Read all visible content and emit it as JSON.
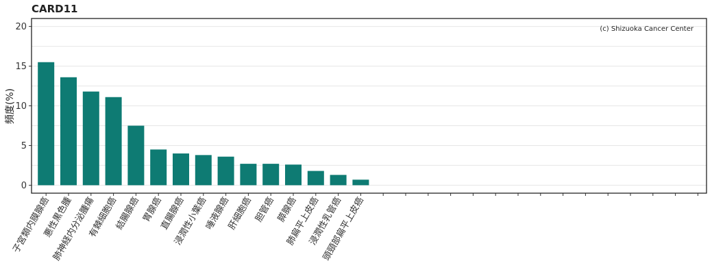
{
  "chart_data": {
    "type": "bar",
    "title": "CARD11",
    "ylabel": "頻度(%)",
    "xlabel": "",
    "annotation": "(c) Shizuoka Cancer Center",
    "ylim": [
      -1,
      21
    ],
    "yticks": [
      0,
      5,
      10,
      15,
      20
    ],
    "grid": true,
    "bar_color": "#0e7b73",
    "categories": [
      "子宮類内膜腺癌",
      "悪性黒色腫",
      "肺神経内分泌腫瘍",
      "有棘細胞癌",
      "結腸腺癌",
      "胃腺癌",
      "直腸腺癌",
      "浸潤性小葉癌",
      "唾液腺癌",
      "肝細胞癌",
      "胆管癌",
      "膵腺癌",
      "肺扁平上皮癌",
      "浸潤性乳管癌",
      "頭頸部扁平上皮癌"
    ],
    "values": [
      15.5,
      13.6,
      11.8,
      11.1,
      7.5,
      4.5,
      4.0,
      3.8,
      3.6,
      2.7,
      2.7,
      2.6,
      1.8,
      1.3,
      0.7
    ],
    "total_slots": 30
  }
}
